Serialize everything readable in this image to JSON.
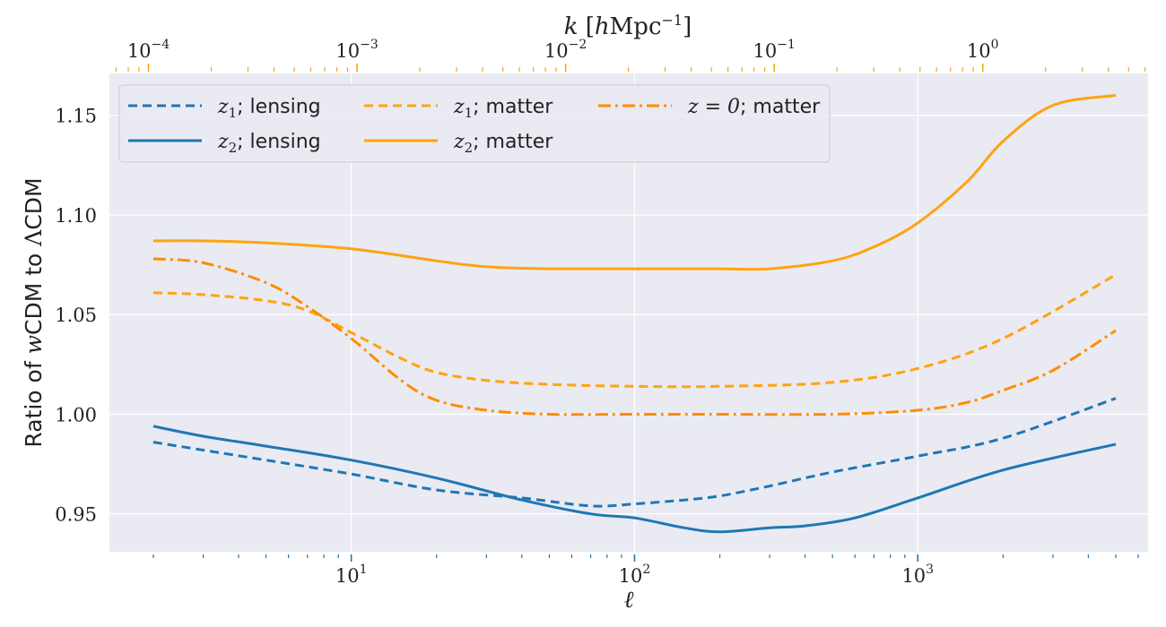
{
  "chart_data": {
    "type": "line",
    "xlabel": "ℓ",
    "ylabel": "Ratio of wCDM to ΛCDM",
    "x2label": "k [hMpc⁻¹]",
    "xscale": "log",
    "x2scale": "log",
    "xlim": [
      1.4,
      6500
    ],
    "ylim": [
      0.931,
      1.171
    ],
    "x2lim": [
      6.5e-05,
      6.2
    ],
    "grid": true,
    "legend_position": "top-left",
    "colors": {
      "blue": "#1f77b4",
      "orange": "#ffa30f",
      "dark_orange": "#ff8c00",
      "background": "#eaeaf2"
    },
    "x_ticks": [
      {
        "label": "10",
        "exp": "1",
        "value": 10
      },
      {
        "label": "10",
        "exp": "2",
        "value": 100
      },
      {
        "label": "10",
        "exp": "3",
        "value": 1000
      }
    ],
    "x2_ticks": [
      {
        "label": "10",
        "exp": "−4",
        "value": 0.0001
      },
      {
        "label": "10",
        "exp": "−3",
        "value": 0.001
      },
      {
        "label": "10",
        "exp": "−2",
        "value": 0.01
      },
      {
        "label": "10",
        "exp": "−1",
        "value": 0.1
      },
      {
        "label": "10",
        "exp": "0",
        "value": 1
      }
    ],
    "y_ticks": [
      "0.95",
      "1.00",
      "1.05",
      "1.10",
      "1.15"
    ],
    "series": [
      {
        "name": "z₁; lensing",
        "var": "z",
        "sub": "1",
        "rest": "; lensing",
        "color": "#1f77b4",
        "dash": "10,6",
        "x": [
          2,
          3,
          5,
          10,
          20,
          40,
          70,
          100,
          150,
          200,
          300,
          500,
          1000,
          2000,
          5000
        ],
        "y": [
          0.986,
          0.982,
          0.977,
          0.97,
          0.962,
          0.958,
          0.954,
          0.955,
          0.957,
          0.959,
          0.964,
          0.971,
          0.979,
          0.988,
          1.008
        ]
      },
      {
        "name": "z₂; lensing",
        "var": "z",
        "sub": "2",
        "rest": "; lensing",
        "color": "#1f77b4",
        "dash": "",
        "x": [
          2,
          3,
          5,
          10,
          20,
          40,
          70,
          100,
          150,
          200,
          300,
          400,
          600,
          1000,
          2000,
          5000
        ],
        "y": [
          0.994,
          0.989,
          0.984,
          0.977,
          0.968,
          0.957,
          0.95,
          0.948,
          0.943,
          0.941,
          0.943,
          0.944,
          0.948,
          0.958,
          0.972,
          0.985
        ]
      },
      {
        "name": "z₁; matter",
        "var": "z",
        "sub": "1",
        "rest": "; matter",
        "color": "#ffa30f",
        "dash": "10,6",
        "x": [
          2,
          3,
          5,
          7,
          10,
          15,
          20,
          30,
          50,
          100,
          200,
          500,
          1000,
          2000,
          5000
        ],
        "y": [
          1.061,
          1.06,
          1.057,
          1.052,
          1.041,
          1.028,
          1.021,
          1.017,
          1.015,
          1.014,
          1.014,
          1.016,
          1.023,
          1.038,
          1.07
        ]
      },
      {
        "name": "z₂; matter",
        "var": "z",
        "sub": "2",
        "rest": "; matter",
        "color": "#ffa30f",
        "dash": "",
        "x": [
          2,
          3,
          5,
          10,
          20,
          30,
          50,
          100,
          200,
          300,
          500,
          700,
          1000,
          1500,
          2000,
          3000,
          5000
        ],
        "y": [
          1.087,
          1.087,
          1.086,
          1.083,
          1.077,
          1.074,
          1.073,
          1.073,
          1.073,
          1.073,
          1.077,
          1.084,
          1.096,
          1.117,
          1.137,
          1.155,
          1.16
        ]
      },
      {
        "name": "z = 0; matter",
        "var": "z = 0",
        "sub": "",
        "rest": "; matter",
        "color": "#ff8c00",
        "dash": "14,5,3,5",
        "x": [
          2,
          3,
          5,
          7,
          10,
          15,
          20,
          30,
          50,
          100,
          200,
          500,
          1000,
          1500,
          2000,
          3000,
          5000
        ],
        "y": [
          1.078,
          1.076,
          1.066,
          1.054,
          1.038,
          1.017,
          1.007,
          1.002,
          1.0,
          1.0,
          1.0,
          1.0,
          1.002,
          1.006,
          1.012,
          1.022,
          1.042
        ]
      }
    ]
  }
}
